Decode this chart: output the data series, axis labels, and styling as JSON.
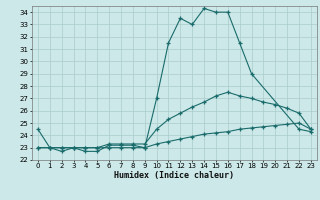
{
  "xlabel": "Humidex (Indice chaleur)",
  "bg_color": "#cce8e8",
  "grid_color": "#aacccc",
  "line_color": "#1a6b6b",
  "xlim": [
    -0.5,
    23.5
  ],
  "ylim": [
    22,
    34.5
  ],
  "xticks": [
    0,
    1,
    2,
    3,
    4,
    5,
    6,
    7,
    8,
    9,
    10,
    11,
    12,
    13,
    14,
    15,
    16,
    17,
    18,
    19,
    20,
    21,
    22,
    23
  ],
  "yticks": [
    22,
    23,
    24,
    25,
    26,
    27,
    28,
    29,
    30,
    31,
    32,
    33,
    34
  ],
  "series1_x": [
    0,
    1,
    2,
    3,
    4,
    5,
    6,
    7,
    8,
    9,
    10,
    11,
    12,
    13,
    14,
    15,
    16,
    17,
    18,
    22,
    23
  ],
  "series1_y": [
    24.5,
    23.0,
    22.7,
    23.0,
    22.7,
    22.7,
    23.2,
    23.2,
    23.2,
    23.0,
    27.0,
    31.5,
    33.5,
    33.0,
    34.3,
    34.0,
    34.0,
    31.5,
    29.0,
    24.5,
    24.3
  ],
  "series2_x": [
    0,
    1,
    2,
    3,
    4,
    5,
    6,
    7,
    8,
    9,
    10,
    11,
    12,
    13,
    14,
    15,
    16,
    17,
    18,
    19,
    20,
    21,
    22,
    23
  ],
  "series2_y": [
    23.0,
    23.0,
    23.0,
    23.0,
    23.0,
    23.0,
    23.3,
    23.3,
    23.3,
    23.3,
    24.5,
    25.3,
    25.8,
    26.3,
    26.7,
    27.2,
    27.5,
    27.2,
    27.0,
    26.7,
    26.5,
    26.2,
    25.8,
    24.5
  ],
  "series3_x": [
    0,
    1,
    2,
    3,
    4,
    5,
    6,
    7,
    8,
    9,
    10,
    11,
    12,
    13,
    14,
    15,
    16,
    17,
    18,
    19,
    20,
    21,
    22,
    23
  ],
  "series3_y": [
    23.0,
    23.0,
    23.0,
    23.0,
    23.0,
    23.0,
    23.0,
    23.0,
    23.0,
    23.0,
    23.3,
    23.5,
    23.7,
    23.9,
    24.1,
    24.2,
    24.3,
    24.5,
    24.6,
    24.7,
    24.8,
    24.9,
    25.0,
    24.5
  ]
}
